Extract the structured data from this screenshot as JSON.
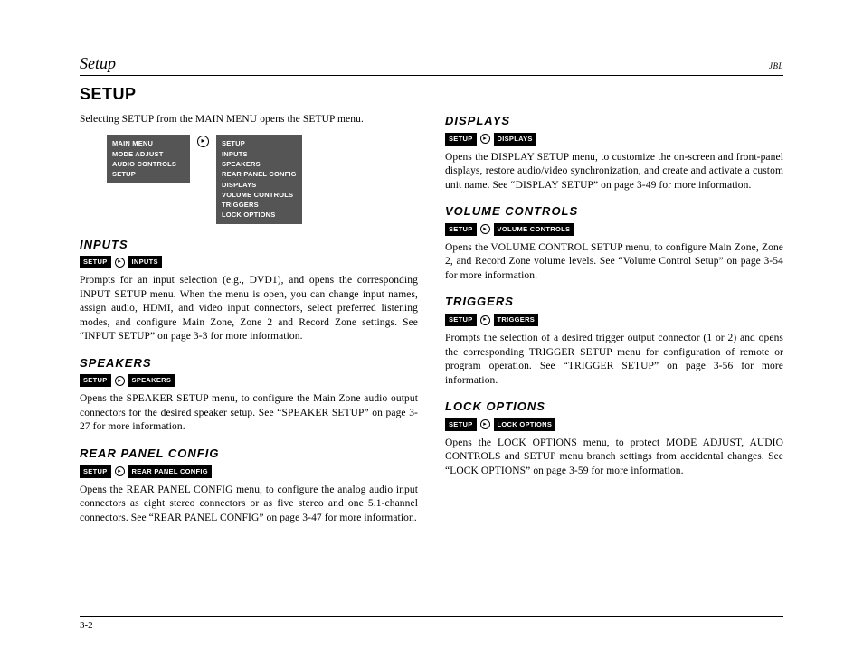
{
  "header": {
    "running_title": "Setup",
    "brand": "JBL"
  },
  "page": {
    "title": "SETUP",
    "intro": "Selecting SETUP from the MAIN MENU opens the SETUP menu.",
    "footer": "3-2"
  },
  "menu_left": {
    "header": "MAIN MENU",
    "items": [
      "MODE ADJUST",
      "AUDIO CONTROLS",
      "SETUP"
    ]
  },
  "menu_right": {
    "header": "SETUP",
    "items": [
      "INPUTS",
      "SPEAKERS",
      "REAR PANEL CONFIG",
      "DISPLAYS",
      "VOLUME CONTROLS",
      "TRIGGERS",
      "LOCK OPTIONS"
    ]
  },
  "arrow": "▸",
  "chips": {
    "setup": "SETUP"
  },
  "sections": {
    "inputs": {
      "heading": "INPUTS",
      "chip": "INPUTS",
      "body": "Prompts for an input selection (e.g., DVD1), and opens the corresponding INPUT SETUP menu. When the menu is open, you can change input names, assign audio, HDMI, and video input connectors, select preferred listening modes, and configure Main Zone, Zone 2 and Record Zone settings. See “INPUT SETUP” on page 3-3 for more information."
    },
    "speakers": {
      "heading": "SPEAKERS",
      "chip": "SPEAKERS",
      "body": "Opens the SPEAKER SETUP menu, to configure the Main Zone audio output connectors for the desired speaker setup. See “SPEAKER SETUP” on page 3-27 for more information."
    },
    "rear": {
      "heading": "REAR PANEL CONFIG",
      "chip": "REAR PANEL CONFIG",
      "body": "Opens the REAR PANEL CONFIG menu, to configure the analog audio input connectors as eight stereo connectors or as five stereo and one 5.1-channel connectors. See “REAR PANEL CONFIG” on page 3-47 for more information."
    },
    "displays": {
      "heading": "DISPLAYS",
      "chip": "DISPLAYS",
      "body": "Opens the DISPLAY SETUP menu, to customize the on-screen and front-panel displays, restore audio/video synchronization, and create and activate a custom unit name. See “DISPLAY SETUP” on page 3-49 for more information."
    },
    "volume": {
      "heading": "VOLUME CONTROLS",
      "chip": "VOLUME CONTROLS",
      "body": "Opens the VOLUME CONTROL SETUP menu, to configure Main Zone, Zone 2, and Record Zone volume levels. See “Volume Control Setup” on page 3-54 for more information."
    },
    "triggers": {
      "heading": "TRIGGERS",
      "chip": "TRIGGERS",
      "body": "Prompts the selection of a desired trigger output connector (1 or 2) and opens the corresponding TRIGGER SETUP menu for configuration of remote or program operation. See “TRIGGER SETUP” on page 3-56 for more information."
    },
    "lock": {
      "heading": "LOCK OPTIONS",
      "chip": "LOCK OPTIONS",
      "body": "Opens the LOCK OPTIONS menu, to protect MODE ADJUST, AUDIO CONTROLS and SETUP menu branch settings from accidental changes. See “LOCK OPTIONS” on page 3-59 for more information."
    }
  }
}
